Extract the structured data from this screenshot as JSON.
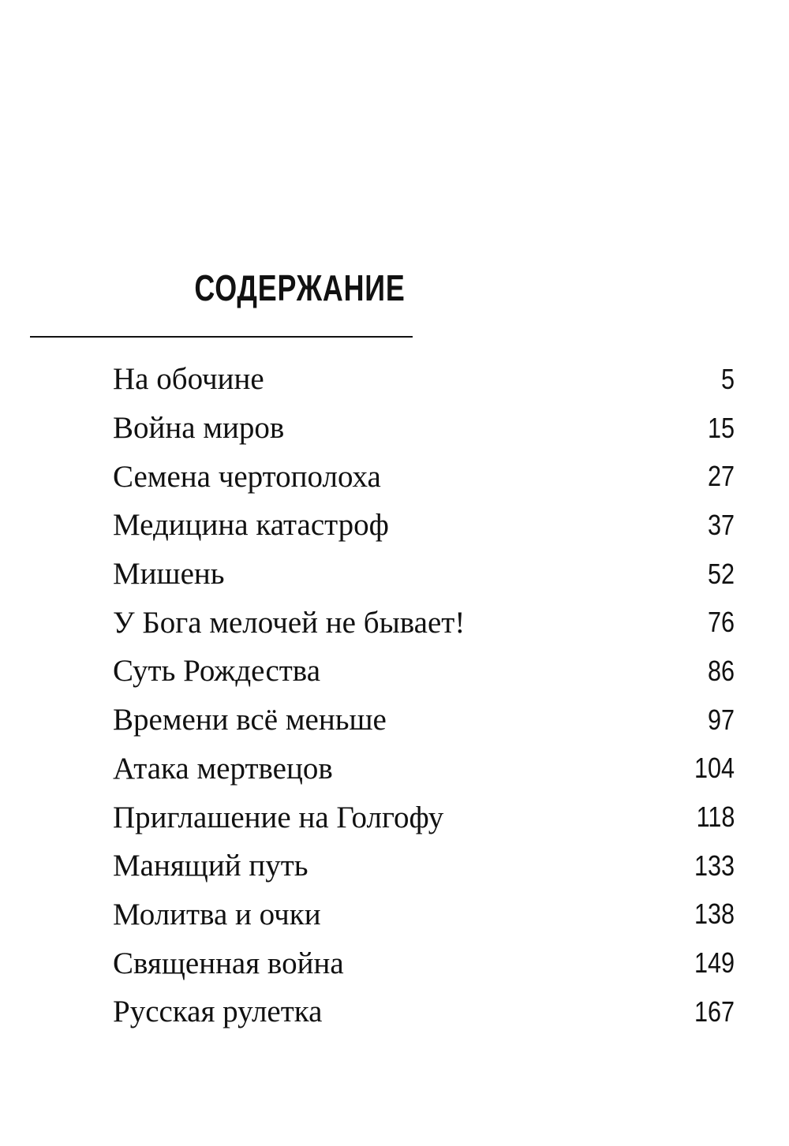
{
  "title": "СОДЕРЖАНИЕ",
  "entries": [
    {
      "title": "На обочине",
      "page": "5"
    },
    {
      "title": "Война миров",
      "page": "15"
    },
    {
      "title": "Семена чертополоха",
      "page": "27"
    },
    {
      "title": "Медицина катастроф",
      "page": "37"
    },
    {
      "title": "Мишень",
      "page": "52"
    },
    {
      "title": "У Бога мелочей не бывает!",
      "page": "76"
    },
    {
      "title": "Суть Рождества",
      "page": "86"
    },
    {
      "title": "Времени всё меньше",
      "page": "97"
    },
    {
      "title": "Атака мертвецов",
      "page": "104"
    },
    {
      "title": "Приглашение на Голгофу",
      "page": "118"
    },
    {
      "title": "Манящий путь",
      "page": "133"
    },
    {
      "title": "Молитва и очки",
      "page": "138"
    },
    {
      "title": "Священная война",
      "page": "149"
    },
    {
      "title": "Русская рулетка",
      "page": "167"
    }
  ]
}
